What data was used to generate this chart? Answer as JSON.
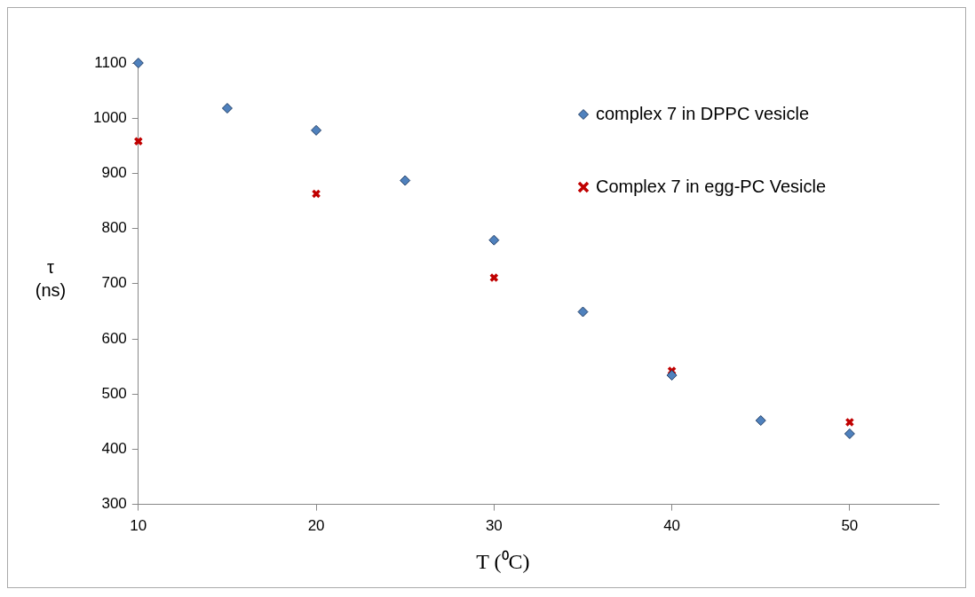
{
  "chart_data": {
    "type": "scatter",
    "xlabel": "T (⁰C)",
    "ylabel": "τ (ns)",
    "xlim": [
      10,
      55
    ],
    "xticks": [
      10,
      20,
      30,
      40,
      50
    ],
    "ylim": [
      300,
      1100
    ],
    "yticks": [
      300,
      400,
      500,
      600,
      700,
      800,
      900,
      1000,
      1100
    ],
    "grid": false,
    "legend": "top right",
    "series": [
      {
        "name": "complex 7 in DPPC vesicle",
        "color": "#4f81bd",
        "marker": "diamond",
        "x": [
          10,
          15,
          20,
          25,
          30,
          35,
          40,
          45,
          50
        ],
        "values": [
          1100,
          1018,
          978,
          887,
          779,
          649,
          534,
          452,
          428
        ]
      },
      {
        "name": "Complex 7 in egg-PC Vesicle",
        "color": "#c00000",
        "marker": "cross",
        "x": [
          10,
          20,
          30,
          40,
          50
        ],
        "values": [
          958,
          863,
          711,
          542,
          449
        ]
      }
    ]
  }
}
